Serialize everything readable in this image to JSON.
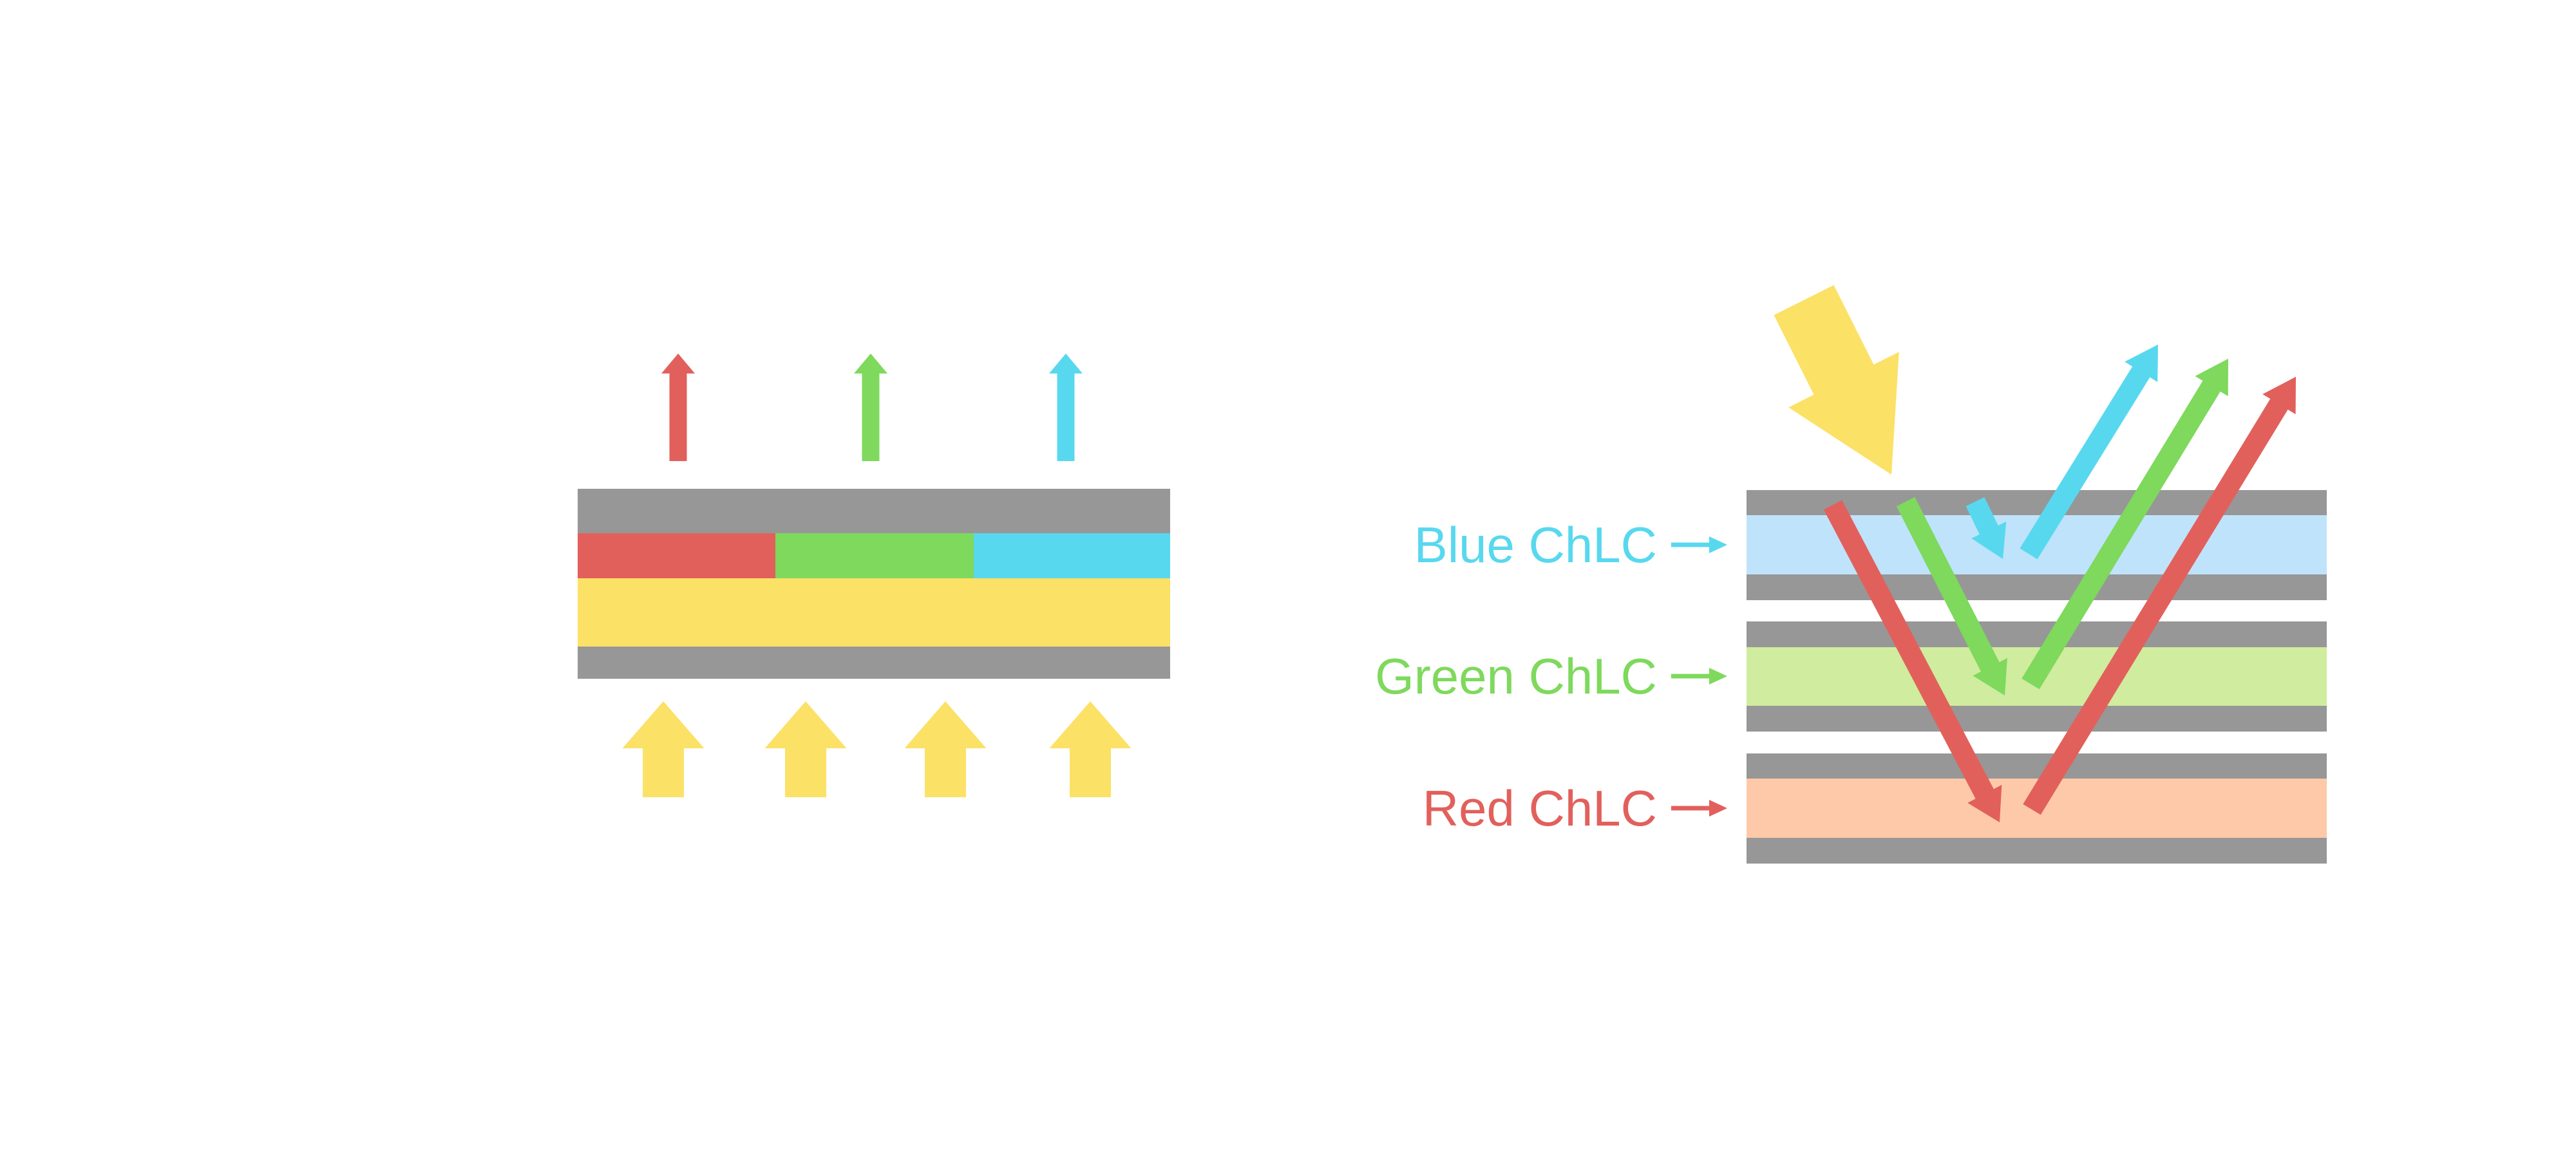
{
  "colors": {
    "red": "#E2605C",
    "green": "#7ED95C",
    "cyan": "#58D8EF",
    "yellow": "#FCE167",
    "gray": "#979797",
    "band_blue": "#BFE3FB",
    "band_green": "#D0EC9E",
    "band_peach": "#FDC9A8",
    "background": "#FFFFFF"
  },
  "left_diagram": {
    "emitted_arrow_colors": [
      "red",
      "green",
      "cyan"
    ],
    "pixel_segment_colors": [
      "red",
      "green",
      "cyan"
    ],
    "backlight_arrow_count": 4
  },
  "right_diagram": {
    "labels": [
      {
        "text": "Blue ChLC"
      },
      {
        "text": "Green ChLC"
      },
      {
        "text": "Red ChLC"
      }
    ]
  }
}
